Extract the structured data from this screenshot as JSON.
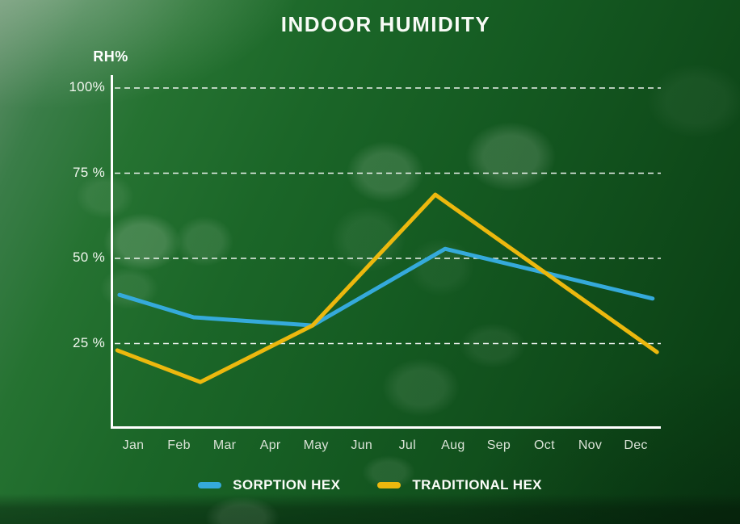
{
  "title": "INDOOR HUMIDITY",
  "y_axis": {
    "unit_label": "RH%",
    "min": 0,
    "max": 100,
    "ticks": [
      {
        "value": 100,
        "label": "100%"
      },
      {
        "value": 75,
        "label": "75 %"
      },
      {
        "value": 50,
        "label": "50 %"
      },
      {
        "value": 25,
        "label": "25 %"
      }
    ]
  },
  "x_axis": {
    "months": [
      "Jan",
      "Feb",
      "Mar",
      "Apr",
      "May",
      "Jun",
      "Jul",
      "Aug",
      "Sep",
      "Oct",
      "Nov",
      "Dec"
    ]
  },
  "legend": [
    {
      "label": "SORPTION HEX",
      "color": "#35aadb"
    },
    {
      "label": "TRADITIONAL HEX",
      "color": "#ecb80e"
    }
  ],
  "colors": {
    "axis": "#ffffff",
    "grid": "#ffffff",
    "sorption_blue": "#35aadb",
    "traditional_yellow": "#ecb80e",
    "background_green_dark": "#0b4015",
    "background_green_light": "#3a7d48"
  },
  "chart_data": {
    "type": "line",
    "title": "INDOOR HUMIDITY",
    "xlabel": "",
    "ylabel": "RH%",
    "ylim": [
      0,
      100
    ],
    "grid": true,
    "grid_style": "dashed",
    "legend_position": "bottom",
    "categories": [
      "Jan",
      "Feb",
      "Mar",
      "Apr",
      "May",
      "Jun",
      "Jul",
      "Aug",
      "Sep",
      "Oct",
      "Nov",
      "Dec"
    ],
    "series": [
      {
        "name": "SORPTION HEX",
        "color": "#35aadb",
        "values": [
          38,
          34,
          32,
          31,
          30,
          38,
          45,
          52,
          49,
          46,
          43,
          39
        ]
      },
      {
        "name": "TRADITIONAL HEX",
        "color": "#ecb80e",
        "values": [
          21,
          16,
          17,
          24,
          30,
          45,
          58,
          67,
          56,
          47,
          38,
          27
        ]
      }
    ],
    "drawn_polylines": [
      {
        "name": "SORPTION HEX",
        "color": "#35aadb",
        "points": [
          [
            1.6,
            39.3
          ],
          [
            15.1,
            32.7
          ],
          [
            36.7,
            30.3
          ],
          [
            60.8,
            52.8
          ],
          [
            98.5,
            38.2
          ]
        ]
      },
      {
        "name": "TRADITIONAL HEX",
        "color": "#ecb80e",
        "points": [
          [
            1.2,
            23.0
          ],
          [
            16.3,
            13.7
          ],
          [
            36.7,
            30.3
          ],
          [
            59.0,
            68.7
          ],
          [
            99.3,
            22.5
          ]
        ]
      }
    ]
  }
}
